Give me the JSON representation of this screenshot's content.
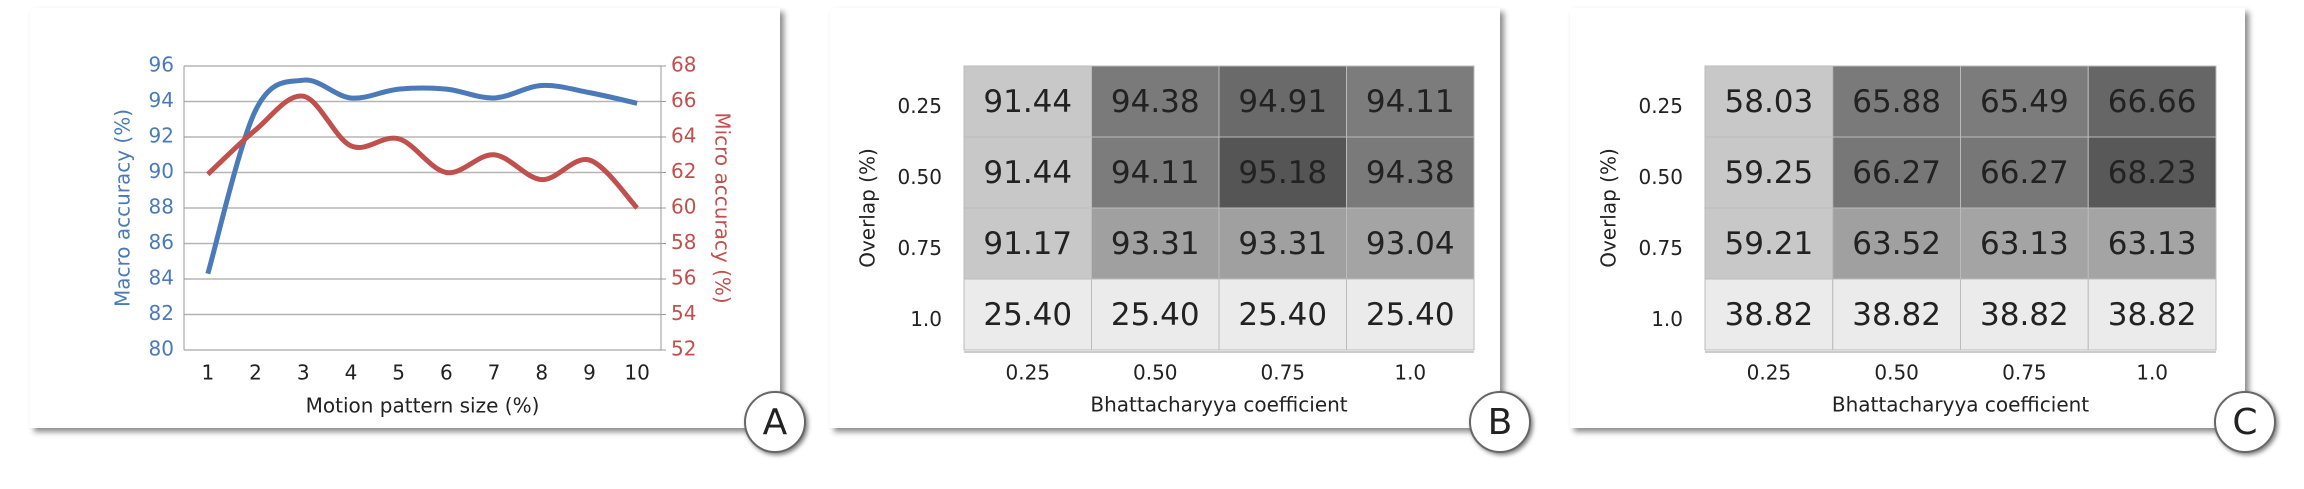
{
  "chart_data": [
    {
      "type": "line",
      "panel_label": "A",
      "x_label": "Motion pattern size (%)",
      "y_label": "Macro accuracy (%)",
      "y2_label": "Micro accuracy (%)",
      "categories": [
        "1",
        "2",
        "3",
        "4",
        "5",
        "6",
        "7",
        "8",
        "9",
        "10"
      ],
      "series": [
        {
          "name": "Macro accuracy (%)",
          "color": "#4a7ab8",
          "values": [
            84.3,
            93.5,
            95.2,
            94.2,
            94.7,
            94.7,
            94.2,
            94.9,
            94.5,
            93.9
          ]
        },
        {
          "name": "Micro accuracy (%)",
          "color": "#c0504d",
          "axis": "y2",
          "values": [
            61.9,
            64.4,
            66.3,
            63.5,
            63.9,
            62.0,
            63.0,
            61.6,
            62.7,
            60.0
          ]
        }
      ],
      "ylim": [
        80,
        96
      ],
      "yticks": [
        80,
        82,
        84,
        86,
        88,
        90,
        92,
        94,
        96
      ],
      "y2lim": [
        52,
        68
      ],
      "y2ticks": [
        52,
        54,
        56,
        58,
        60,
        62,
        64,
        66,
        68
      ],
      "grid": true
    },
    {
      "type": "heatmap",
      "panel_label": "B",
      "x_label": "Bhattacharyya coefficient",
      "y_label": "Overlap (%)",
      "x_categories": [
        "0.25",
        "0.50",
        "0.75",
        "1.0"
      ],
      "y_categories": [
        "0.25",
        "0.50",
        "0.75",
        "1.0"
      ],
      "values": [
        [
          91.44,
          94.38,
          94.91,
          94.11
        ],
        [
          91.44,
          94.11,
          95.18,
          94.38
        ],
        [
          91.17,
          93.31,
          93.31,
          93.04
        ],
        [
          25.4,
          25.4,
          25.4,
          25.4
        ]
      ],
      "value_labels": [
        [
          "91.44",
          "94.38",
          "94.91",
          "94.11"
        ],
        [
          "91.44",
          "94.11",
          "95.18",
          "94.38"
        ],
        [
          "91.17",
          "93.31",
          "93.31",
          "93.04"
        ],
        [
          "25.40",
          "25.40",
          "25.40",
          "25.40"
        ]
      ],
      "colors": [
        [
          "#c8c8c8",
          "#7a7a7a",
          "#6a6a6a",
          "#7c7c7c"
        ],
        [
          "#c8c8c8",
          "#7c7c7c",
          "#555555",
          "#7a7a7a"
        ],
        [
          "#c8c8c8",
          "#a0a0a0",
          "#a0a0a0",
          "#a4a4a4"
        ],
        [
          "#ebebeb",
          "#ebebeb",
          "#ebebeb",
          "#ebebeb"
        ]
      ]
    },
    {
      "type": "heatmap",
      "panel_label": "C",
      "x_label": "Bhattacharyya coefficient",
      "y_label": "Overlap (%)",
      "x_categories": [
        "0.25",
        "0.50",
        "0.75",
        "1.0"
      ],
      "y_categories": [
        "0.25",
        "0.50",
        "0.75",
        "1.0"
      ],
      "values": [
        [
          58.03,
          65.88,
          65.49,
          66.66
        ],
        [
          59.25,
          66.27,
          66.27,
          68.23
        ],
        [
          59.21,
          63.52,
          63.13,
          63.13
        ],
        [
          38.82,
          38.82,
          38.82,
          38.82
        ]
      ],
      "value_labels": [
        [
          "58.03",
          "65.88",
          "65.49",
          "66.66"
        ],
        [
          "59.25",
          "66.27",
          "66.27",
          "68.23"
        ],
        [
          "59.21",
          "63.52",
          "63.13",
          "63.13"
        ],
        [
          "38.82",
          "38.82",
          "38.82",
          "38.82"
        ]
      ],
      "colors": [
        [
          "#c8c8c8",
          "#7a7a7a",
          "#7c7c7c",
          "#666666"
        ],
        [
          "#c8c8c8",
          "#777777",
          "#777777",
          "#585858"
        ],
        [
          "#c8c8c8",
          "#a0a0a0",
          "#a4a4a4",
          "#a4a4a4"
        ],
        [
          "#ebebeb",
          "#ebebeb",
          "#ebebeb",
          "#ebebeb"
        ]
      ]
    }
  ]
}
